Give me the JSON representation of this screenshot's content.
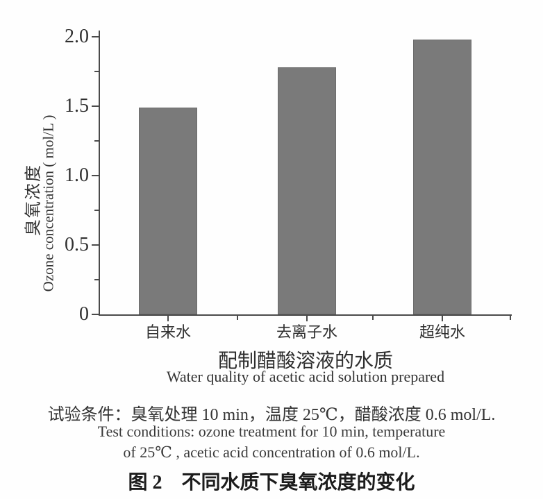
{
  "chart_data": {
    "type": "bar",
    "categories": [
      "自来水",
      "去离子水",
      "超纯水"
    ],
    "values": [
      1.49,
      1.78,
      1.98
    ],
    "bar_color": "#7a7a7a",
    "axis_color": "#4a4a4a",
    "ylabel_cn": "臭氧浓度",
    "ylabel_en": "Ozone concentration ( mol/L )",
    "xlabel_cn": "配制醋酸溶液的水质",
    "xlabel_en": "Water quality of acetic acid solution prepared",
    "ylim": [
      0,
      2.0
    ],
    "yticks": [
      0,
      0.5,
      1.0,
      1.5,
      2.0
    ],
    "ytick_labels": [
      "0",
      "0.5",
      "1.0",
      "1.5",
      "2.0"
    ],
    "minor_yticks": [
      0.25,
      0.75,
      1.25,
      1.75
    ],
    "grid": false,
    "legend": null
  },
  "notes": {
    "conditions_cn": "试验条件：臭氧处理 10 min，温度 25℃，醋酸浓度 0.6 mol/L.",
    "conditions_en_line1": "Test conditions: ozone treatment for 10 min, temperature",
    "conditions_en_line2": "of 25℃ , acetic acid concentration of 0.6 mol/L."
  },
  "caption": "图 2　不同水质下臭氧浓度的变化"
}
